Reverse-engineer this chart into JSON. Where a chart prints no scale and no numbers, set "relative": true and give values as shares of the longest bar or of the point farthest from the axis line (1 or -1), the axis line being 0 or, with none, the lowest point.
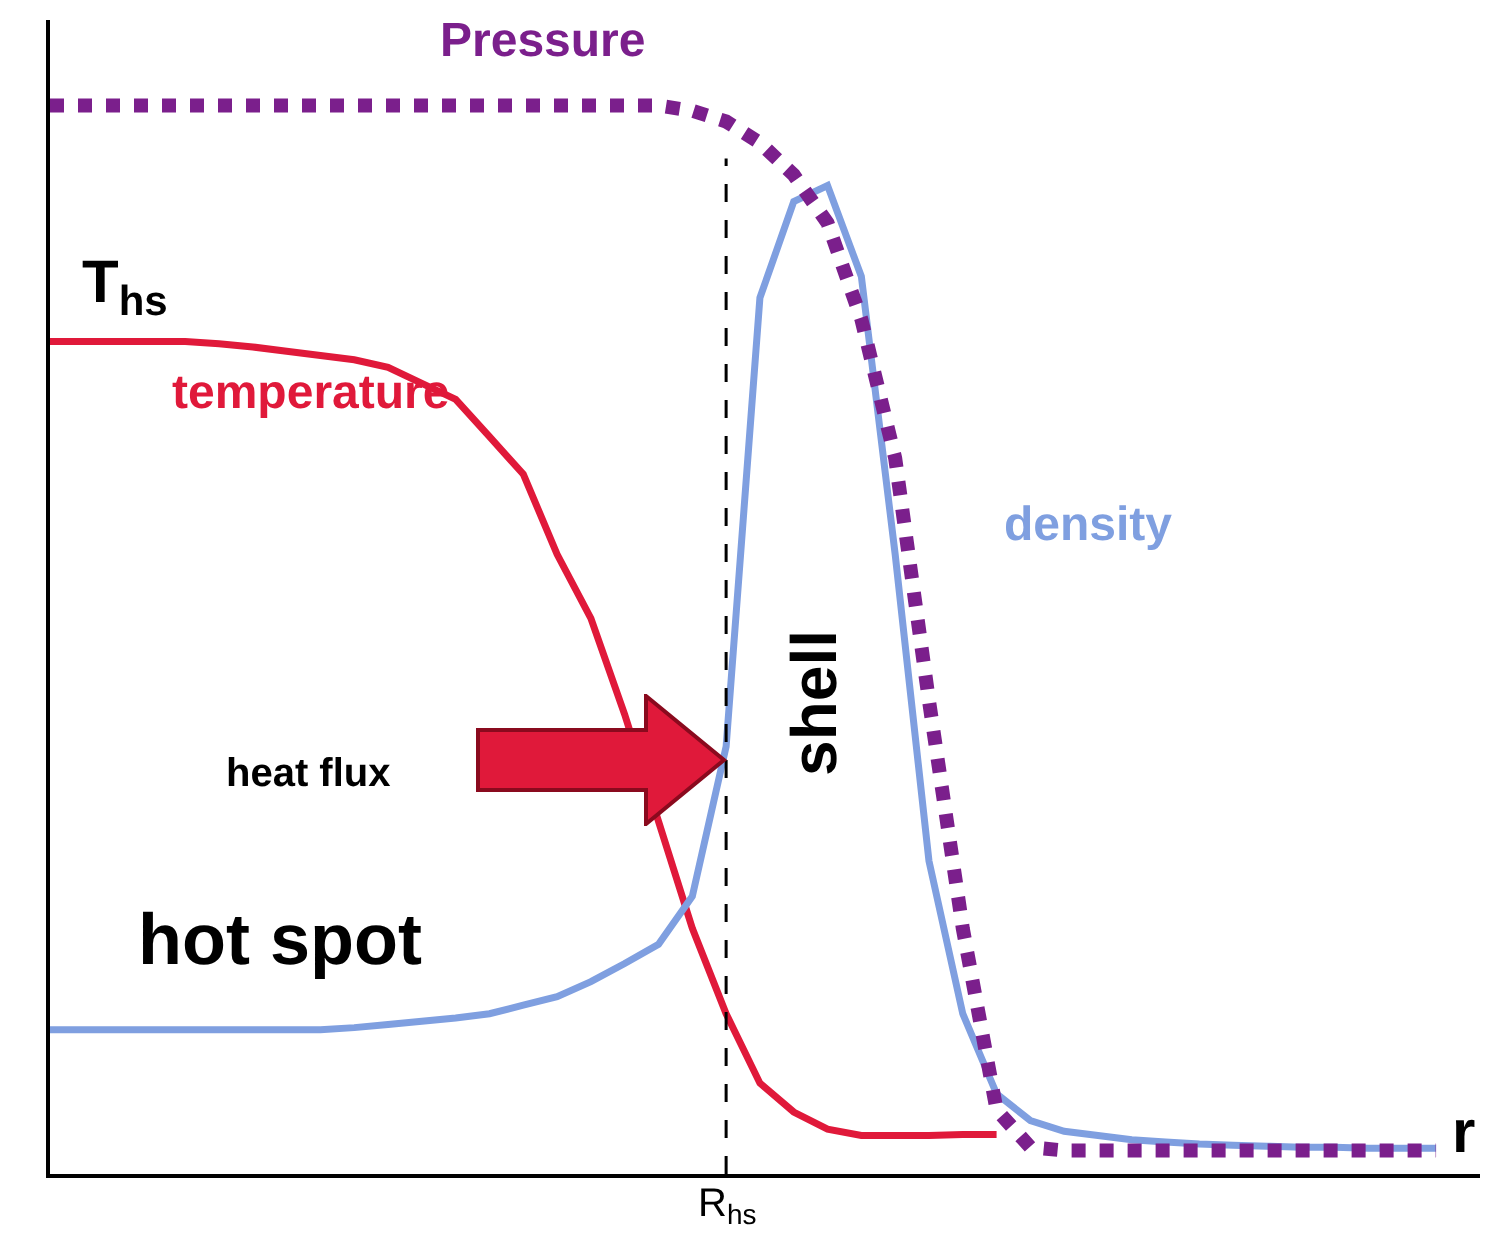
{
  "chart_data": {
    "type": "line",
    "relative": true,
    "xlabel": "r",
    "grid": false,
    "legend": false,
    "marker": "none",
    "categories": [
      null,
      null,
      null,
      null,
      null,
      null,
      null,
      null,
      null,
      null,
      null,
      null,
      null,
      null,
      null,
      null,
      null,
      null,
      null,
      null,
      null,
      null,
      null,
      null,
      null,
      null,
      null,
      null,
      null,
      null,
      null,
      null,
      null,
      null,
      null,
      null,
      null,
      null,
      null,
      null,
      null,
      null
    ],
    "series": [
      {
        "name": "temperature",
        "color": "#e0193a",
        "line_style": "solid",
        "values": [
          0.779,
          0.779,
          0.779,
          0.779,
          0.779,
          0.777,
          0.774,
          0.77,
          0.766,
          0.762,
          0.755,
          0.74,
          0.725,
          0.69,
          0.655,
          0.58,
          0.52,
          0.43,
          0.33,
          0.23,
          0.15,
          0.085,
          0.058,
          0.042,
          0.036,
          0.036,
          0.036,
          0.037,
          0.037,
          null,
          null,
          null,
          null,
          null,
          null,
          null,
          null,
          null,
          null,
          null,
          null,
          null
        ]
      },
      {
        "name": "density",
        "color": "#7f9fe0",
        "line_style": "solid",
        "values": [
          0.135,
          0.135,
          0.135,
          0.135,
          0.135,
          0.135,
          0.135,
          0.135,
          0.135,
          0.137,
          0.14,
          0.143,
          0.146,
          0.15,
          0.158,
          0.166,
          0.18,
          0.197,
          0.215,
          0.26,
          0.4,
          0.82,
          0.91,
          0.925,
          0.84,
          0.58,
          0.293,
          0.15,
          0.075,
          0.05,
          0.04,
          0.036,
          0.032,
          0.03,
          0.028,
          0.027,
          0.026,
          0.025,
          0.025,
          0.024,
          0.024,
          0.024
        ]
      },
      {
        "name": "Pressure",
        "color": "#7b1f8c",
        "line_style": "dotted",
        "values": [
          1,
          1,
          1,
          1,
          1,
          1,
          1,
          1,
          1,
          1,
          1,
          1,
          1,
          1,
          1,
          1,
          1,
          1,
          1,
          0.995,
          0.985,
          0.965,
          0.935,
          0.89,
          0.8,
          0.67,
          0.443,
          0.23,
          0.06,
          0.025,
          0.022,
          0.022,
          0.022,
          0.022,
          0.022,
          0.022,
          0.022,
          0.022,
          0.022,
          0.022,
          0.022,
          0.022
        ]
      }
    ],
    "annotations": [
      "T$_{hs}$",
      "heat flux",
      "hot spot",
      "shell",
      "R$_{hs}$"
    ]
  }
}
